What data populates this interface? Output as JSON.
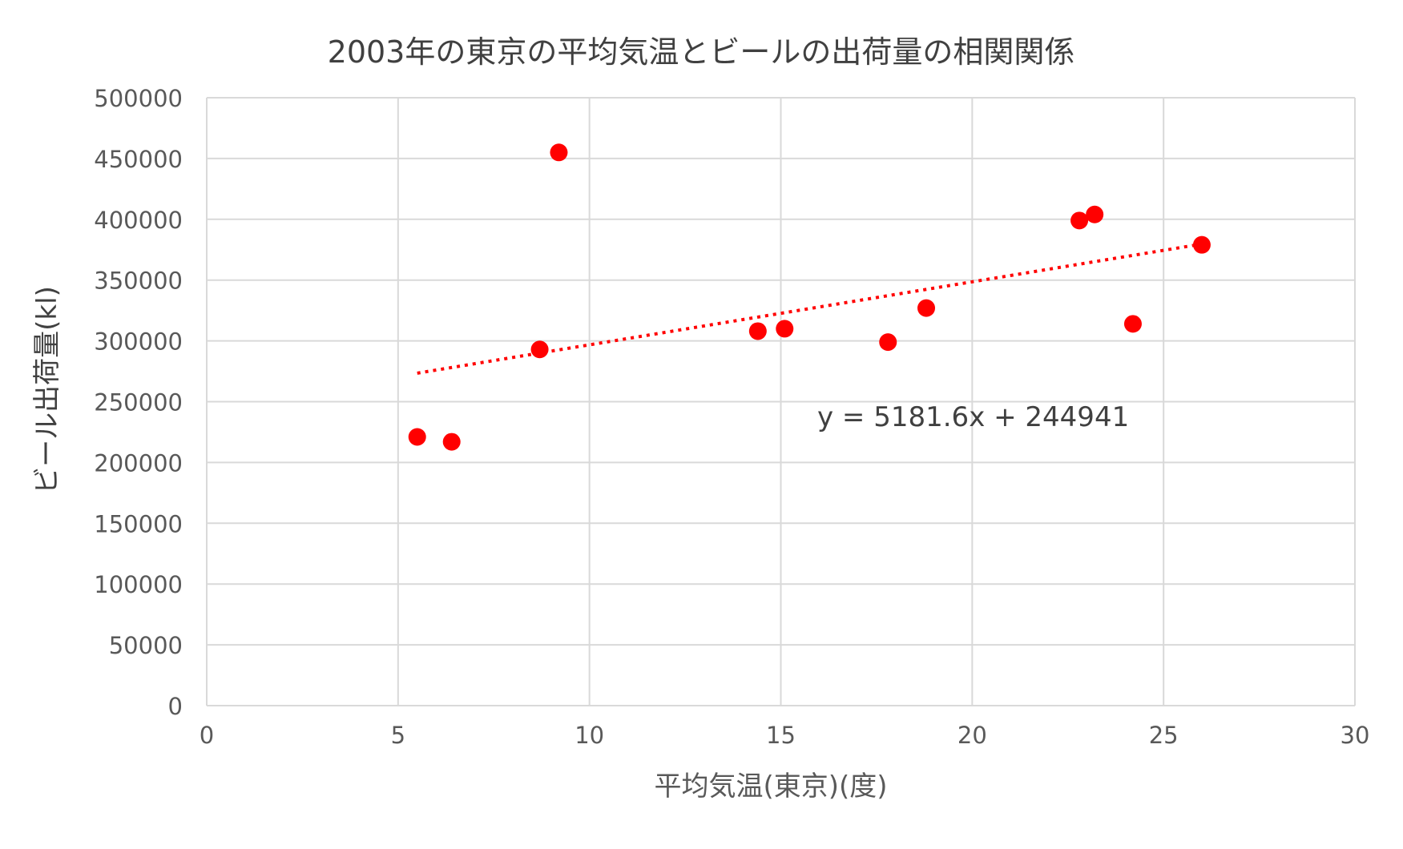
{
  "chart_data": {
    "type": "scatter",
    "title": "2003年の東京の平均気温とビールの出荷量の相関関係",
    "xlabel": "平均気温(東京)(度)",
    "ylabel": "ビール出荷量(kl)",
    "xlim": [
      0,
      30
    ],
    "ylim": [
      0,
      500000
    ],
    "x_ticks": [
      0,
      5,
      10,
      15,
      20,
      25,
      30
    ],
    "y_ticks": [
      0,
      50000,
      100000,
      150000,
      200000,
      250000,
      300000,
      350000,
      400000,
      450000,
      500000
    ],
    "grid": true,
    "series": [
      {
        "points": [
          {
            "x": 5.5,
            "y": 221000
          },
          {
            "x": 6.4,
            "y": 217000
          },
          {
            "x": 8.7,
            "y": 293000
          },
          {
            "x": 9.2,
            "y": 455000
          },
          {
            "x": 14.4,
            "y": 308000
          },
          {
            "x": 15.1,
            "y": 310000
          },
          {
            "x": 17.8,
            "y": 299000
          },
          {
            "x": 18.8,
            "y": 327000
          },
          {
            "x": 22.8,
            "y": 399000
          },
          {
            "x": 23.2,
            "y": 404000
          },
          {
            "x": 24.2,
            "y": 314000
          },
          {
            "x": 26.0,
            "y": 379000
          }
        ],
        "color": "#ff0000"
      }
    ],
    "trendline": {
      "type": "linear",
      "slope": 5181.6,
      "intercept": 244941,
      "x_range": [
        5.5,
        26.0
      ],
      "color": "#ff0000",
      "style": "dotted",
      "equation_label": "y = 5181.6x + 244941"
    },
    "colors": {
      "grid": "#d9d9d9",
      "axis_text": "#595959",
      "title_text": "#404040"
    }
  }
}
